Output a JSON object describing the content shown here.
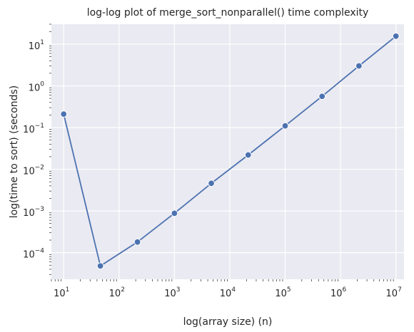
{
  "chart_data": {
    "type": "line",
    "title": "log-log plot of merge_sort_nonparallel() time complexity",
    "xlabel": "log(array size) (n)",
    "ylabel": "log(time to sort) (seconds)",
    "x_scale": "log",
    "y_scale": "log",
    "xlim": [
      6,
      14000000
    ],
    "ylim": [
      2.3e-05,
      30
    ],
    "x_ticks": [
      {
        "value": 10,
        "base": "10",
        "exp": "1"
      },
      {
        "value": 100,
        "base": "10",
        "exp": "2"
      },
      {
        "value": 1000,
        "base": "10",
        "exp": "3"
      },
      {
        "value": 10000,
        "base": "10",
        "exp": "4"
      },
      {
        "value": 100000,
        "base": "10",
        "exp": "5"
      },
      {
        "value": 1000000,
        "base": "10",
        "exp": "6"
      },
      {
        "value": 10000000,
        "base": "10",
        "exp": "7"
      }
    ],
    "y_ticks": [
      {
        "value": 0.0001,
        "base": "10",
        "exp": "−4"
      },
      {
        "value": 0.001,
        "base": "10",
        "exp": "−3"
      },
      {
        "value": 0.01,
        "base": "10",
        "exp": "−2"
      },
      {
        "value": 0.1,
        "base": "10",
        "exp": "−1"
      },
      {
        "value": 1,
        "base": "10",
        "exp": "0"
      },
      {
        "value": 10,
        "base": "10",
        "exp": "1"
      }
    ],
    "grid": true,
    "series": [
      {
        "x": [
          10,
          46,
          215,
          1000,
          4640,
          21500,
          100000,
          464000,
          2150000,
          10000000
        ],
        "y": [
          0.21,
          4.8e-05,
          0.00018,
          0.00088,
          0.0046,
          0.022,
          0.11,
          0.56,
          3.0,
          15.5
        ]
      }
    ],
    "colors": {
      "background": "#eaeaf2",
      "grid": "#ffffff",
      "series": "#4c72b0",
      "text": "#262626"
    }
  }
}
